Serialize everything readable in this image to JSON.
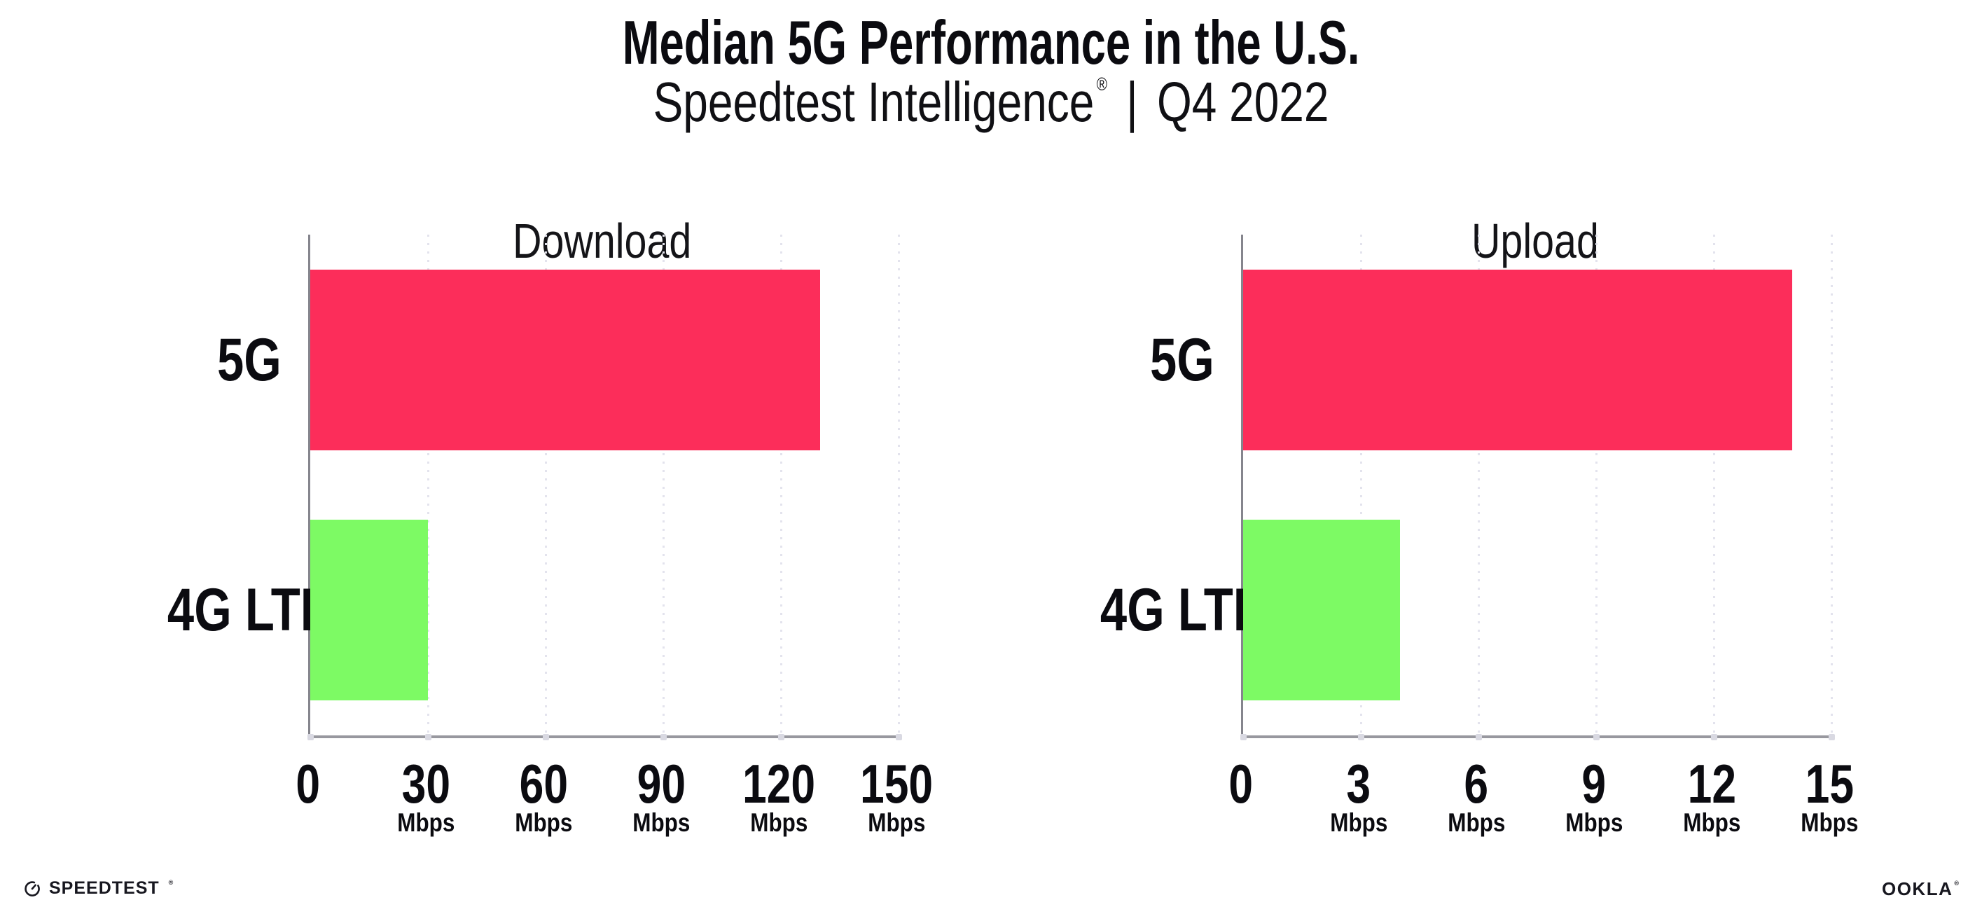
{
  "header": {
    "title": "Median 5G Performance in the U.S.",
    "subtitle": {
      "product": "Speedtest Intelligence",
      "registered_mark": "®",
      "separator": "|",
      "period": "Q4 2022"
    }
  },
  "chart_data": [
    {
      "type": "bar",
      "orientation": "horizontal",
      "title": "Download",
      "categories": [
        "5G",
        "4G LTE"
      ],
      "values": [
        130,
        30
      ],
      "value_unit": "Mbps",
      "bar_colors": [
        "#FC2D5A",
        "#7DFA64"
      ],
      "xlim": [
        0,
        150
      ],
      "xticks": [
        0,
        30,
        60,
        90,
        120,
        150
      ],
      "xtick_unit_label": "Mbps",
      "grid": "vertical-dotted",
      "legend": "none"
    },
    {
      "type": "bar",
      "orientation": "horizontal",
      "title": "Upload",
      "categories": [
        "5G",
        "4G LTE"
      ],
      "values": [
        14,
        4
      ],
      "value_unit": "Mbps",
      "bar_colors": [
        "#FC2D5A",
        "#7DFA64"
      ],
      "xlim": [
        0,
        15
      ],
      "xticks": [
        0,
        3,
        6,
        9,
        12,
        15
      ],
      "xtick_unit_label": "Mbps",
      "grid": "vertical-dotted",
      "legend": "none"
    }
  ],
  "footer": {
    "speedtest_logo_text": "SPEEDTEST",
    "speedtest_mark": "®",
    "ookla_logo_text": "OOKLA",
    "ookla_mark": "®"
  }
}
